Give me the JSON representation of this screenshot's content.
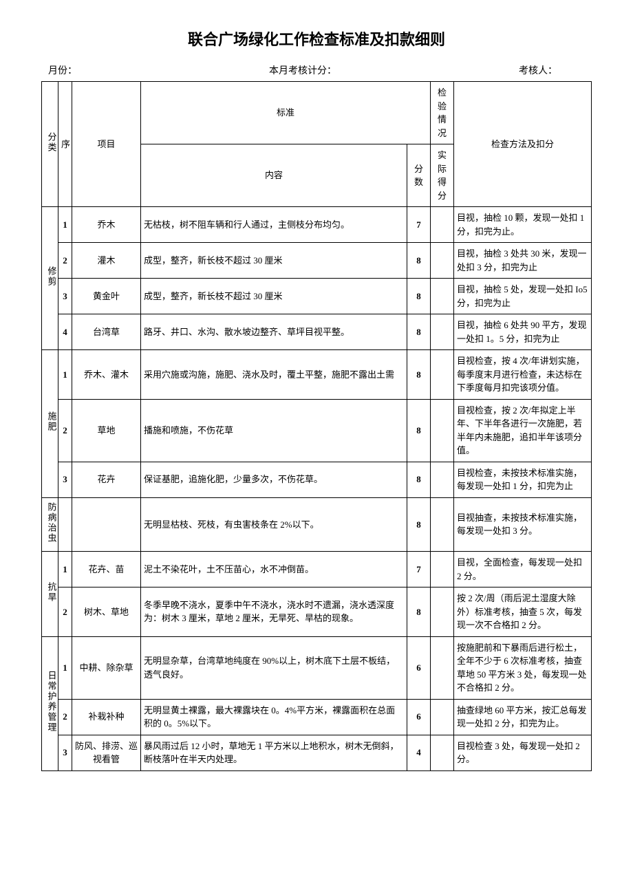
{
  "title": "联合广场绿化工作检查标准及扣款细则",
  "meta": {
    "month_label": "月份：",
    "score_label": "本月考核计分：",
    "auditor_label": "考核人："
  },
  "header": {
    "category": "分类",
    "seq": "序",
    "item": "项目",
    "standard": "标准",
    "content": "内容",
    "score": "分数",
    "inspection": "检验情况",
    "actual": "实际得分",
    "method": "检查方法及扣分"
  },
  "groups": [
    {
      "category": "修剪",
      "rows": [
        {
          "seq": "1",
          "item": "乔木",
          "content": "无枯枝，树不阻车辆和行人通过，主侧枝分布均匀。",
          "score": "7",
          "method": "目视，抽检 10 颗，发现一处扣 1 分，扣完为止。"
        },
        {
          "seq": "2",
          "item": "灌木",
          "content": "成型，整齐，新长枝不超过 30 厘米",
          "score": "8",
          "method": "目视，抽检 3 处共 30 米，发现一处扣 3 分，扣完为止"
        },
        {
          "seq": "3",
          "item": "黄金叶",
          "content": "成型，整齐，新长枝不超过 30 厘米",
          "score": "8",
          "method": "目视，抽检 5 处，发现一处扣 Io5 分，扣完为止"
        },
        {
          "seq": "4",
          "item": "台湾草",
          "content": "路牙、井口、水沟、散水坡边整齐、草坪目视平整。",
          "score": "8",
          "method": "目视，抽检 6 处共 90 平方，发现一处扣 1。5 分，扣完为止"
        }
      ]
    },
    {
      "category": "施肥",
      "rows": [
        {
          "seq": "1",
          "item": "乔木、灌木",
          "content": "采用穴施或沟施，施肥、浇水及时，覆土平整，施肥不露出土需",
          "score": "8",
          "method": "目视检查，按 4 次/年讲划实施，每季度末月进行检查，未达标在下季度每月扣完该项分值。"
        },
        {
          "seq": "2",
          "item": "草地",
          "content": "播施和喷施，不伤花草",
          "score": "8",
          "method": "目视检查，按 2 次/年拟定上半年、下半年各进行一次施肥，若半年内未施肥，追扣半年该项分值。"
        },
        {
          "seq": "3",
          "item": "花卉",
          "content": "保证基肥，追施化肥，少量多次，不伤花草。",
          "score": "8",
          "method": "目视检查，未按技术标准实施，每发现一处扣 1 分，扣完为止"
        }
      ]
    },
    {
      "category": "防病治虫",
      "rows": [
        {
          "seq": "",
          "item": "",
          "content": "无明显枯枝、死枝，有虫害枝条在 2%以下。",
          "score": "8",
          "method": "目视抽查，未按技术标准实施，每发现一处扣 3 分。"
        }
      ]
    },
    {
      "category": "抗旱",
      "rows": [
        {
          "seq": "1",
          "item": "花卉、苗",
          "content": "泥土不染花叶，土不压苗心，水不冲倒苗。",
          "score": "7",
          "method": "目视，全面检查，每发现一处扣 2 分。"
        },
        {
          "seq": "2",
          "item": "树木、草地",
          "content": "冬季早晚不浇水，夏季中午不浇水，浇水时不遗漏，浇水透深度为：树木 3 厘米，草地 2 厘米，无旱死、旱枯的现象。",
          "score": "8",
          "method": "按 2 次/周（雨后泥土湿度大除外）标准考核，抽查 5 次，每发现一次不合格扣 2 分。"
        }
      ]
    },
    {
      "category": "日常护养管理",
      "rows": [
        {
          "seq": "1",
          "item": "中耕、除杂草",
          "content": "无明显杂草，台湾草地纯度在 90%以上，树木底下土层不板结，透气良好。",
          "score": "6",
          "method": "按施肥前和下暴雨后进行松土，全年不少于 6 次标准考核，抽查草地 50 平方米 3 处，每发现一处不合格扣 2 分。"
        },
        {
          "seq": "2",
          "item": "补栽补种",
          "content": "无明显黄土裸露，最大裸露块在 0。4%平方米，裸露面积在总面积的 0。5%以下。",
          "score": "6",
          "method": "抽查绿地 60 平方米，按汇总每发现一处扣 2 分，扣完为止。"
        },
        {
          "seq": "3",
          "item": "防风、排涝、巡视看管",
          "content": "暴风雨过后 12 小时，草地无 1 平方米以上地积水，树木无倒斜，断枝落叶在半天内处理。",
          "score": "4",
          "method": "目视检查 3 处，每发现一处扣 2 分。"
        }
      ]
    }
  ]
}
